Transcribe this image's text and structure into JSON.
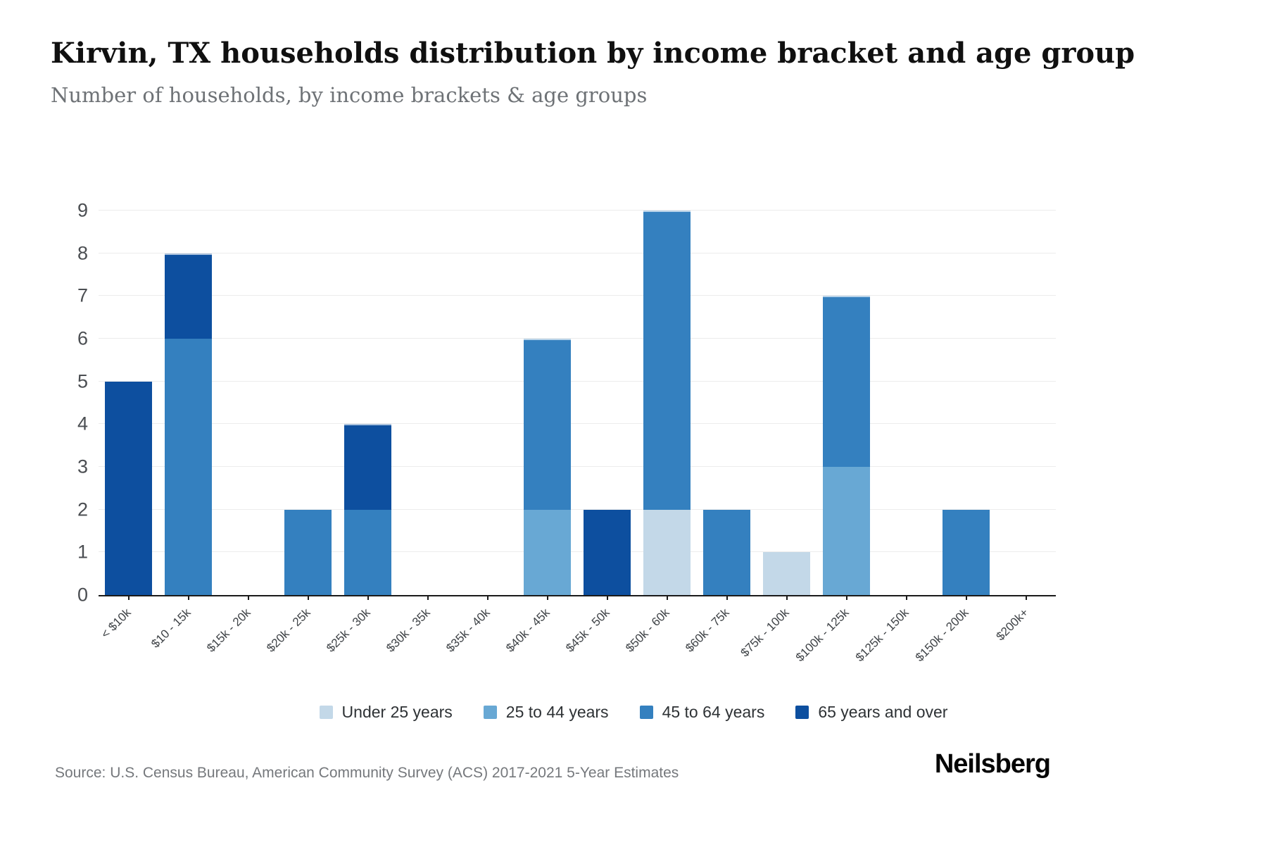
{
  "header": {
    "title": "Kirvin, TX households distribution by income bracket and age group",
    "subtitle": "Number of households, by income brackets & age groups"
  },
  "footer": {
    "source": "Source: U.S. Census Bureau, American Community Survey (ACS) 2017-2021 5-Year Estimates",
    "brand": "Neilsberg"
  },
  "colors": {
    "axis": "#1a1a1a",
    "grid": "#ececec",
    "y_tick_label": "#4b4e52",
    "x_tick_label": "#3f4347",
    "under_25": "#c3d8e8",
    "age_25_44": "#68a8d4",
    "age_45_64": "#3480bf",
    "age_65_over": "#0d4f9f"
  },
  "chart_data": {
    "type": "bar",
    "stacked": true,
    "title": "Kirvin, TX households distribution by income bracket and age group",
    "subtitle": "Number of households, by income brackets & age groups",
    "xlabel": "",
    "ylabel": "Number of households",
    "ylim": [
      0,
      9
    ],
    "yticks": [
      0,
      1,
      2,
      3,
      4,
      5,
      6,
      7,
      8,
      9
    ],
    "grid": true,
    "legend_position": "bottom",
    "categories": [
      "< $10k",
      "$10 - 15k",
      "$15k - 20k",
      "$20k - 25k",
      "$25k - 30k",
      "$30k - 35k",
      "$35k - 40k",
      "$40k - 45k",
      "$45k - 50k",
      "$50k - 60k",
      "$60k - 75k",
      "$75k - 100k",
      "$100k - 125k",
      "$125k - 150k",
      "$150k - 200k",
      "$200k+"
    ],
    "series": [
      {
        "name": "Under 25 years",
        "color": "#c3d8e8",
        "values": [
          0,
          0,
          0,
          0,
          0,
          0,
          0,
          0,
          0,
          2,
          0,
          1,
          0,
          0,
          0,
          0
        ]
      },
      {
        "name": "25 to 44 years",
        "color": "#68a8d4",
        "values": [
          0,
          0,
          0,
          0,
          0,
          0,
          0,
          2,
          0,
          0,
          0,
          0,
          3,
          0,
          0,
          0
        ]
      },
      {
        "name": "45 to 64 years",
        "color": "#3480bf",
        "values": [
          0,
          6,
          0,
          2,
          2,
          0,
          0,
          4,
          0,
          7,
          2,
          0,
          4,
          0,
          2,
          0
        ]
      },
      {
        "name": "65 years and over",
        "color": "#0d4f9f",
        "values": [
          5,
          2,
          0,
          0,
          2,
          0,
          0,
          0,
          2,
          0,
          0,
          0,
          0,
          0,
          0,
          0
        ]
      }
    ],
    "totals": [
      5,
      8,
      0,
      2,
      4,
      0,
      0,
      6,
      2,
      9,
      2,
      1,
      7,
      0,
      2,
      0
    ]
  }
}
